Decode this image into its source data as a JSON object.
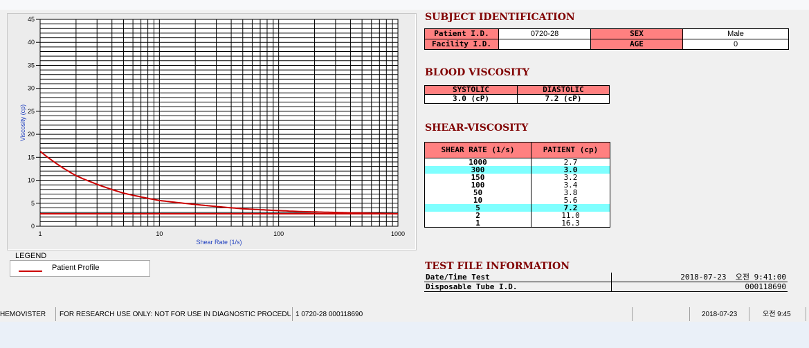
{
  "chart_data": {
    "type": "line",
    "xlabel": "Shear Rate (1/s)",
    "ylabel": "Viscosity (cp)",
    "xscale": "log",
    "xlim": [
      1,
      1000
    ],
    "ylim": [
      0,
      45
    ],
    "x_ticks": [
      "1",
      "10",
      "100",
      "1000"
    ],
    "y_ticks": [
      "0",
      "5",
      "10",
      "15",
      "20",
      "25",
      "30",
      "35",
      "40",
      "45"
    ],
    "grid": true,
    "series": [
      {
        "name": "Patient Profile",
        "color": "#cc0000",
        "x": [
          1,
          2,
          5,
          10,
          50,
          100,
          150,
          300,
          1000
        ],
        "y": [
          16.3,
          11.0,
          7.2,
          5.6,
          3.8,
          3.4,
          3.2,
          3.0,
          2.7
        ]
      }
    ],
    "reference_lines": [
      {
        "color": "#cc0000",
        "y": 2.7
      }
    ]
  },
  "legend": {
    "title": "LEGEND",
    "items": [
      {
        "label": "Patient Profile",
        "color": "#cc0000"
      }
    ]
  },
  "subject": {
    "title": "SUBJECT IDENTIFICATION",
    "patient_id_label": "Patient I.D.",
    "patient_id": "0720-28",
    "sex_label": "SEX",
    "sex": "Male",
    "facility_label": "Facility I.D.",
    "facility": "",
    "age_label": "AGE",
    "age": "0"
  },
  "blood": {
    "title": "BLOOD VISCOSITY",
    "systolic_label": "SYSTOLIC",
    "diastolic_label": "DIASTOLIC",
    "systolic": "3.0 (cP)",
    "diastolic": "7.2 (cP)"
  },
  "shear": {
    "title": "SHEAR-VISCOSITY",
    "col1": "SHEAR RATE (1/s)",
    "col2": "PATIENT (cp)",
    "rows": [
      {
        "rate": "1000",
        "value": "2.7"
      },
      {
        "rate": "300",
        "value": "3.0"
      },
      {
        "rate": "150",
        "value": "3.2"
      },
      {
        "rate": "100",
        "value": "3.4"
      },
      {
        "rate": "50",
        "value": "3.8"
      },
      {
        "rate": "10",
        "value": "5.6"
      },
      {
        "rate": "5",
        "value": "7.2"
      },
      {
        "rate": "2",
        "value": "11.0"
      },
      {
        "rate": "1",
        "value": "16.3"
      }
    ]
  },
  "testfile": {
    "title": "TEST FILE INFORMATION",
    "datetime_label": "Date/Time Test",
    "datetime": "2018-07-23  오전 9:41:00",
    "tube_label": "Disposable Tube I.D.",
    "tube": "000118690"
  },
  "statusbar": {
    "app": "HEMOVISTER",
    "notice": "FOR RESEARCH USE ONLY: NOT FOR USE IN DIAGNOSTIC PROCEDURES",
    "file": "1  0720-28  000118690",
    "date": "2018-07-23",
    "time": "오전 9:45"
  }
}
